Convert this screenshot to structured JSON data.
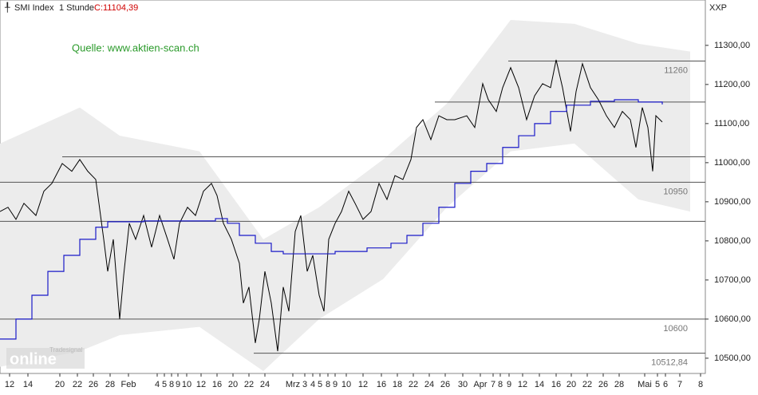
{
  "chart_data": {
    "type": "line",
    "instrument": "SMI Index",
    "interval": "1 Stunde",
    "close_label": "C:11104,39",
    "source": "Quelle: www.aktien-scan.ch",
    "currency": "XXP",
    "logo": "online",
    "logo_sub": "Tradesignal",
    "xlim": [
      0,
      884
    ],
    "ylim": [
      10461,
      11416
    ],
    "yticks": [
      {
        "value": 10500,
        "label": "10500,00"
      },
      {
        "value": 10600,
        "label": "10600,00"
      },
      {
        "value": 10700,
        "label": "10700,00"
      },
      {
        "value": 10800,
        "label": "10800,00"
      },
      {
        "value": 10900,
        "label": "10900,00"
      },
      {
        "value": 11000,
        "label": "11000,00"
      },
      {
        "value": 11100,
        "label": "11100,00"
      },
      {
        "value": 11200,
        "label": "11200,00"
      },
      {
        "value": 11300,
        "label": "11300,00"
      }
    ],
    "xticks": [
      {
        "value": 12,
        "label": "12"
      },
      {
        "value": 35,
        "label": "14"
      },
      {
        "value": 75,
        "label": "20"
      },
      {
        "value": 97,
        "label": "22"
      },
      {
        "value": 117,
        "label": "26"
      },
      {
        "value": 138,
        "label": "28"
      },
      {
        "value": 161,
        "label": "Feb"
      },
      {
        "value": 197,
        "label": "4"
      },
      {
        "value": 206,
        "label": "5"
      },
      {
        "value": 215,
        "label": "8"
      },
      {
        "value": 223,
        "label": "9"
      },
      {
        "value": 234,
        "label": "10"
      },
      {
        "value": 252,
        "label": "12"
      },
      {
        "value": 272,
        "label": "16"
      },
      {
        "value": 292,
        "label": "20"
      },
      {
        "value": 312,
        "label": "22"
      },
      {
        "value": 332,
        "label": "24"
      },
      {
        "value": 367,
        "label": "Mrz"
      },
      {
        "value": 382,
        "label": "3"
      },
      {
        "value": 392,
        "label": "4"
      },
      {
        "value": 401,
        "label": "5"
      },
      {
        "value": 411,
        "label": "8"
      },
      {
        "value": 420,
        "label": "9"
      },
      {
        "value": 434,
        "label": "10"
      },
      {
        "value": 455,
        "label": "12"
      },
      {
        "value": 478,
        "label": "16"
      },
      {
        "value": 498,
        "label": "18"
      },
      {
        "value": 518,
        "label": "22"
      },
      {
        "value": 538,
        "label": "24"
      },
      {
        "value": 558,
        "label": "26"
      },
      {
        "value": 580,
        "label": "30"
      },
      {
        "value": 602,
        "label": "Apr"
      },
      {
        "value": 618,
        "label": "7"
      },
      {
        "value": 627,
        "label": "8"
      },
      {
        "value": 638,
        "label": "9"
      },
      {
        "value": 655,
        "label": "12"
      },
      {
        "value": 676,
        "label": "14"
      },
      {
        "value": 697,
        "label": "16"
      },
      {
        "value": 716,
        "label": "20"
      },
      {
        "value": 736,
        "label": "22"
      },
      {
        "value": 756,
        "label": "26"
      },
      {
        "value": 776,
        "label": "28"
      },
      {
        "value": 808,
        "label": "Mai"
      },
      {
        "value": 824,
        "label": "5"
      },
      {
        "value": 834,
        "label": "6"
      },
      {
        "value": 852,
        "label": "7"
      },
      {
        "value": 878,
        "label": "8"
      }
    ],
    "band": {
      "color": "#ececec",
      "x": [
        0,
        100,
        150,
        250,
        330,
        400,
        480,
        560,
        640,
        720,
        800,
        865
      ],
      "upper": [
        11049,
        11141,
        11069,
        11029,
        10804,
        10886,
        11008,
        11151,
        11365,
        11355,
        11304,
        11284
      ],
      "lower": [
        10478,
        10518,
        10559,
        10580,
        10467,
        10600,
        10702,
        10886,
        11029,
        11049,
        10906,
        10875
      ]
    },
    "levels": [
      {
        "value": 11260,
        "x_start": 637,
        "label": "11260"
      },
      {
        "value": 11155,
        "x_start": 545
      },
      {
        "value": 11015,
        "x_start": 78
      },
      {
        "value": 10950,
        "x_start": 0,
        "label": "10950"
      },
      {
        "value": 10850,
        "x_start": 0
      },
      {
        "value": 10600,
        "x_start": 0,
        "label": "10600"
      },
      {
        "value": 10512.84,
        "x_start": 318,
        "label": "10512,84"
      }
    ],
    "series": [
      {
        "color": "#000000",
        "step": false,
        "x": [
          0,
          10,
          20,
          30,
          45,
          55,
          65,
          78,
          90,
          100,
          110,
          120,
          130,
          135,
          142,
          150,
          155,
          162,
          170,
          180,
          190,
          200,
          210,
          218,
          225,
          235,
          245,
          255,
          265,
          272,
          280,
          290,
          300,
          305,
          312,
          320,
          325,
          332,
          340,
          348,
          355,
          362,
          370,
          377,
          385,
          392,
          400,
          406,
          412,
          420,
          428,
          437,
          445,
          455,
          465,
          475,
          485,
          495,
          505,
          515,
          522,
          530,
          540,
          550,
          560,
          570,
          585,
          595,
          605,
          612,
          622,
          630,
          640,
          650,
          660,
          670,
          680,
          690,
          697,
          705,
          715,
          722,
          730,
          740,
          750,
          760,
          770,
          780,
          790,
          797,
          805,
          812,
          818,
          822,
          830
        ],
        "values": [
          10875,
          10886,
          10855,
          10896,
          10865,
          10927,
          10947,
          10998,
          10978,
          11008,
          10978,
          10957,
          10804,
          10722,
          10804,
          10600,
          10712,
          10845,
          10804,
          10865,
          10784,
          10865,
          10804,
          10753,
          10845,
          10886,
          10865,
          10927,
          10947,
          10916,
          10845,
          10804,
          10743,
          10641,
          10682,
          10539,
          10600,
          10722,
          10641,
          10518,
          10682,
          10620,
          10824,
          10865,
          10722,
          10763,
          10661,
          10620,
          10804,
          10845,
          10875,
          10927,
          10896,
          10855,
          10875,
          10947,
          10906,
          10967,
          10957,
          11008,
          11090,
          11110,
          11059,
          11120,
          11110,
          11110,
          11120,
          11090,
          11202,
          11161,
          11131,
          11192,
          11243,
          11192,
          11110,
          11171,
          11202,
          11192,
          11263,
          11192,
          11080,
          11182,
          11253,
          11192,
          11161,
          11120,
          11090,
          11131,
          11110,
          11039,
          11141,
          11090,
          10978,
          11120,
          11104
        ]
      },
      {
        "color": "#1a1ac8",
        "step": true,
        "x": [
          0,
          20,
          40,
          60,
          80,
          100,
          120,
          135,
          180,
          270,
          285,
          300,
          320,
          340,
          355,
          395,
          420,
          460,
          490,
          510,
          530,
          550,
          570,
          590,
          610,
          630,
          650,
          670,
          690,
          710,
          740,
          770,
          800,
          830
        ],
        "values": [
          10549,
          10600,
          10661,
          10722,
          10763,
          10804,
          10835,
          10849,
          10851,
          10857,
          10845,
          10814,
          10794,
          10773,
          10767,
          10767,
          10773,
          10782,
          10794,
          10814,
          10845,
          10886,
          10947,
          10978,
          10998,
          11039,
          11069,
          11100,
          11131,
          11147,
          11157,
          11161,
          11155,
          11149
        ]
      }
    ]
  }
}
